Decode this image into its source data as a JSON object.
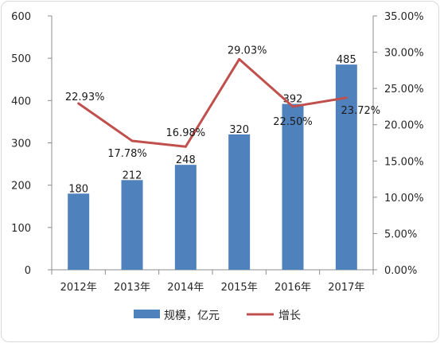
{
  "chart_data": {
    "type": "bar",
    "categories": [
      "2012年",
      "2013年",
      "2014年",
      "2015年",
      "2016年",
      "2017年"
    ],
    "series": [
      {
        "name": "规模，亿元",
        "type": "bar",
        "axis": "left",
        "color": "#4f81bd",
        "values": [
          180,
          212,
          248,
          320,
          392,
          485
        ],
        "labels": [
          "180",
          "212",
          "248",
          "320",
          "392",
          "485"
        ]
      },
      {
        "name": "增长",
        "type": "line",
        "axis": "right",
        "color": "#c0504d",
        "values": [
          22.93,
          17.78,
          16.98,
          29.03,
          22.5,
          23.72
        ],
        "labels": [
          "22.93%",
          "17.78%",
          "16.98%",
          "29.03%",
          "22.50%",
          "23.72%"
        ]
      }
    ],
    "y_left": {
      "min": 0,
      "max": 600,
      "ticks": [
        "0",
        "100",
        "200",
        "300",
        "400",
        "500",
        "600"
      ]
    },
    "y_right": {
      "min": 0,
      "max": 35,
      "ticks": [
        "0.00%",
        "5.00%",
        "10.00%",
        "15.00%",
        "20.00%",
        "25.00%",
        "30.00%",
        "35.00%"
      ]
    },
    "grid": false,
    "legend": "bottom"
  }
}
